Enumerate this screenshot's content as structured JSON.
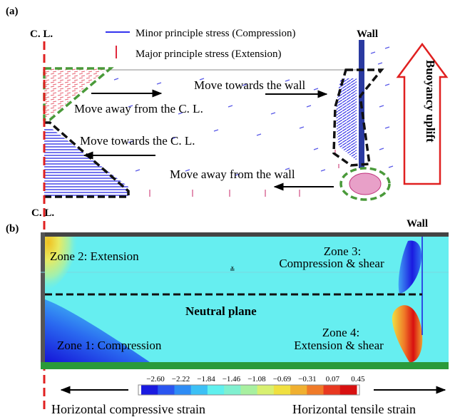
{
  "panel_a": {
    "label": "(a)",
    "cl_label": "C. L.",
    "wall_label": "Wall",
    "legend_minor": "Minor principle stress (Compression)",
    "legend_major": "Major principle stress (Extension)",
    "buoyancy": "Buoyancy uplift",
    "ann_move_towards_wall": "Move towards the wall",
    "ann_move_away_cl": "Move away from the C. L.",
    "ann_move_towards_cl": "Move towards the C. L.",
    "ann_move_away_wall": "Move away from the wall",
    "colors": {
      "compression": "#3333ee",
      "extension": "#e0283c",
      "dashed_green": "#4a9a3a"
    }
  },
  "panel_b": {
    "label": "(b)",
    "cl_label": "C. L.",
    "wall_label": "Wall",
    "zone1": "Zone 1: Compression",
    "zone2": "Zone 2: Extension",
    "zone3_line1": "Zone 3:",
    "zone3_line2": "Compression & shear",
    "zone4_line1": "Zone 4:",
    "zone4_line2": "Extension & shear",
    "neutral_plane": "Neutral plane",
    "colorbar_ticks": [
      "−2.60",
      "−2.22",
      "−1.84",
      "−1.46",
      "−1.08",
      "−0.69",
      "−0.31",
      "0.07",
      "0.45"
    ],
    "colorbar_colors": [
      "#1a1ae0",
      "#2a55f0",
      "#2e8cf5",
      "#3cc0f5",
      "#60f0ee",
      "#80f0d0",
      "#a8f0a0",
      "#d8f070",
      "#f0e040",
      "#f0b030",
      "#f07a28",
      "#e83820",
      "#d81010"
    ],
    "left_caption": "Horizontal compressive strain",
    "right_caption": "Horizontal tensile strain"
  }
}
